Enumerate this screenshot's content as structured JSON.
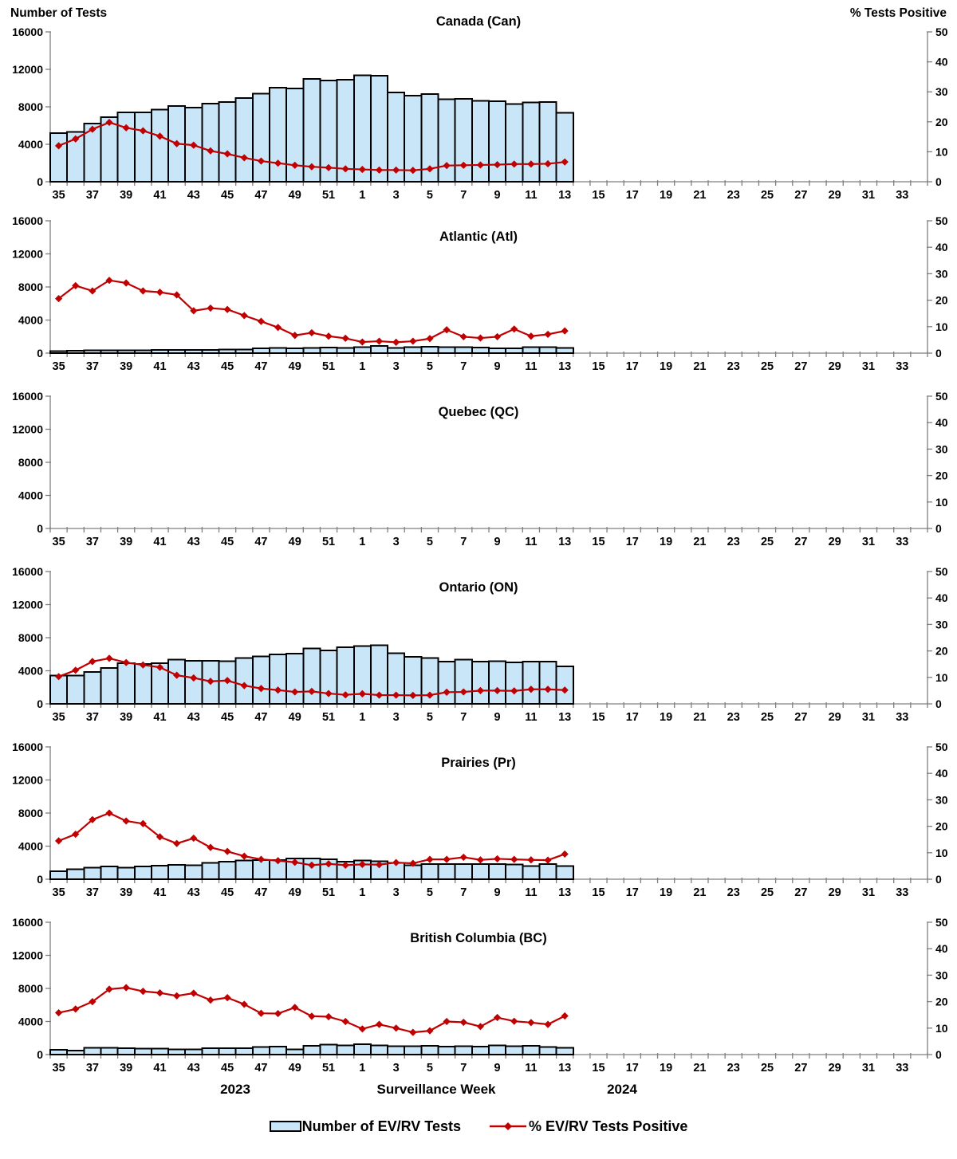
{
  "figure": {
    "left_axis_title": "Number of Tests",
    "right_axis_title": "% Tests Positive",
    "x_axis_title": "Surveillance Week",
    "year_left": "2023",
    "year_right": "2024",
    "legend": {
      "bar_label": "Number of EV/RV Tests",
      "line_label": "% EV/RV Tests Positive"
    },
    "colors": {
      "bar_fill": "#C9E6F8",
      "bar_stroke": "#000000",
      "line_color": "#C00000",
      "axis_color": "#7F7F7F",
      "text_color": "#000000"
    }
  },
  "axes": {
    "left_ticks": [
      0,
      4000,
      8000,
      12000,
      16000
    ],
    "left_max": 16000,
    "right_ticks": [
      0,
      10,
      20,
      30,
      40,
      50
    ],
    "right_max": 50,
    "weeks": [
      35,
      36,
      37,
      38,
      39,
      40,
      41,
      42,
      43,
      44,
      45,
      46,
      47,
      48,
      49,
      50,
      51,
      52,
      1,
      2,
      3,
      4,
      5,
      6,
      7,
      8,
      9,
      10,
      11,
      12,
      13,
      14,
      15,
      16,
      17,
      18,
      19,
      20,
      21,
      22,
      23,
      24,
      25,
      26,
      27,
      28,
      29,
      30,
      31,
      32,
      33,
      34
    ]
  },
  "chart_data": [
    {
      "type": "bar+line",
      "region": "Canada (Can)",
      "x_weeks": [
        35,
        36,
        37,
        38,
        39,
        40,
        41,
        42,
        43,
        44,
        45,
        46,
        47,
        48,
        49,
        50,
        51,
        52,
        1,
        2,
        3,
        4,
        5,
        6,
        7,
        8,
        9,
        10,
        11,
        12,
        13
      ],
      "tests": [
        5200,
        5300,
        6200,
        6900,
        7400,
        7400,
        7700,
        8100,
        7900,
        8350,
        8500,
        8950,
        9400,
        10050,
        9950,
        11000,
        10800,
        10900,
        11350,
        11300,
        9550,
        9200,
        9350,
        8800,
        8850,
        8650,
        8600,
        8300,
        8450,
        8500,
        7350
      ],
      "pct_positive": [
        12.0,
        14.3,
        17.5,
        19.8,
        18.0,
        17.0,
        15.2,
        12.7,
        12.2,
        10.3,
        9.3,
        8.0,
        6.9,
        6.2,
        5.5,
        5.0,
        4.7,
        4.3,
        4.1,
        3.9,
        3.9,
        3.8,
        4.3,
        5.4,
        5.5,
        5.6,
        5.7,
        5.9,
        5.9,
        6.0,
        6.6
      ]
    },
    {
      "type": "bar+line",
      "region": "Atlantic (Atl)",
      "x_weeks": [
        35,
        36,
        37,
        38,
        39,
        40,
        41,
        42,
        43,
        44,
        45,
        46,
        47,
        48,
        49,
        50,
        51,
        52,
        1,
        2,
        3,
        4,
        5,
        6,
        7,
        8,
        9,
        10,
        11,
        12,
        13
      ],
      "tests": [
        250,
        300,
        330,
        340,
        340,
        350,
        380,
        390,
        400,
        400,
        420,
        450,
        580,
        620,
        600,
        640,
        680,
        640,
        700,
        850,
        640,
        700,
        790,
        700,
        700,
        660,
        600,
        560,
        700,
        700,
        650
      ],
      "pct_positive": [
        20.6,
        25.5,
        23.5,
        27.5,
        26.5,
        23.5,
        23.0,
        22.0,
        16.0,
        17.0,
        16.5,
        14.2,
        12.0,
        9.7,
        6.7,
        7.7,
        6.4,
        5.6,
        4.2,
        4.5,
        4.1,
        4.5,
        5.5,
        8.8,
        6.2,
        5.7,
        6.2,
        9.1,
        6.4,
        7.1,
        8.4
      ]
    },
    {
      "type": "bar+line",
      "region": "Quebec (QC)",
      "x_weeks": [],
      "tests": [],
      "pct_positive": []
    },
    {
      "type": "bar+line",
      "region": "Ontario (ON)",
      "x_weeks": [
        35,
        36,
        37,
        38,
        39,
        40,
        41,
        42,
        43,
        44,
        45,
        46,
        47,
        48,
        49,
        50,
        51,
        52,
        1,
        2,
        3,
        4,
        5,
        6,
        7,
        8,
        9,
        10,
        11,
        12,
        13
      ],
      "tests": [
        3400,
        3400,
        3850,
        4350,
        4900,
        4800,
        4900,
        5350,
        5200,
        5200,
        5150,
        5550,
        5750,
        6000,
        6050,
        6700,
        6450,
        6850,
        7000,
        7100,
        6100,
        5700,
        5550,
        5100,
        5350,
        5100,
        5150,
        5000,
        5100,
        5100,
        4550
      ],
      "pct_positive": [
        10.3,
        12.7,
        16.0,
        17.2,
        15.6,
        14.7,
        13.8,
        10.8,
        9.8,
        8.5,
        8.8,
        6.9,
        5.8,
        5.2,
        4.5,
        4.7,
        3.9,
        3.4,
        3.8,
        3.3,
        3.3,
        3.2,
        3.3,
        4.4,
        4.5,
        5.0,
        5.0,
        4.9,
        5.5,
        5.5,
        5.2
      ]
    },
    {
      "type": "bar+line",
      "region": "Prairies (Pr)",
      "x_weeks": [
        35,
        36,
        37,
        38,
        39,
        40,
        41,
        42,
        43,
        44,
        45,
        46,
        47,
        48,
        49,
        50,
        51,
        52,
        1,
        2,
        3,
        4,
        5,
        6,
        7,
        8,
        9,
        10,
        11,
        12,
        13
      ],
      "tests": [
        950,
        1200,
        1400,
        1550,
        1400,
        1550,
        1650,
        1750,
        1700,
        2000,
        2100,
        2250,
        2300,
        2300,
        2500,
        2500,
        2400,
        2100,
        2250,
        2150,
        2000,
        1700,
        1850,
        1850,
        1850,
        1850,
        1850,
        1800,
        1600,
        1850,
        1600
      ],
      "pct_positive": [
        14.5,
        17.0,
        22.5,
        25.0,
        22.0,
        21.0,
        16.0,
        13.5,
        15.5,
        12.0,
        10.5,
        8.7,
        7.5,
        7.0,
        6.4,
        5.3,
        5.8,
        5.3,
        5.6,
        5.5,
        6.3,
        6.0,
        7.5,
        7.5,
        8.3,
        7.3,
        7.7,
        7.5,
        7.3,
        7.2,
        9.5
      ]
    },
    {
      "type": "bar+line",
      "region": "British Columbia (BC)",
      "x_weeks": [
        35,
        36,
        37,
        38,
        39,
        40,
        41,
        42,
        43,
        44,
        45,
        46,
        47,
        48,
        49,
        50,
        51,
        52,
        1,
        2,
        3,
        4,
        5,
        6,
        7,
        8,
        9,
        10,
        11,
        12,
        13
      ],
      "tests": [
        600,
        500,
        800,
        800,
        750,
        700,
        700,
        650,
        650,
        750,
        750,
        750,
        900,
        950,
        650,
        1050,
        1200,
        1100,
        1250,
        1100,
        1000,
        1000,
        1050,
        950,
        1000,
        950,
        1100,
        1000,
        1050,
        900,
        800
      ],
      "pct_positive": [
        15.8,
        17.2,
        20.0,
        24.7,
        25.3,
        23.9,
        23.3,
        22.2,
        23.2,
        20.6,
        21.5,
        19.0,
        15.6,
        15.5,
        17.8,
        14.5,
        14.3,
        12.5,
        9.7,
        11.4,
        10.0,
        8.4,
        9.0,
        12.5,
        12.2,
        10.6,
        14.0,
        12.6,
        12.1,
        11.4,
        14.6
      ]
    }
  ]
}
